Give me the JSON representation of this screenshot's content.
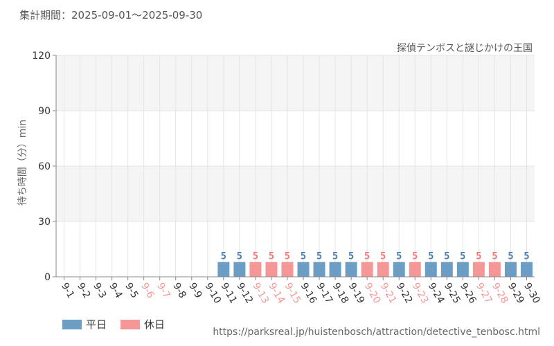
{
  "header": {
    "period": "集計期間：2025-09-01～2025-09-30",
    "attraction": "探偵テンボスと謎じかけの王国"
  },
  "source_url": "https://parksreal.jp/huistenbosch/attraction/detective_tenbosc.html",
  "colors": {
    "weekday": "#6b9dc5",
    "holiday": "#f59797",
    "weekday_text": "#4a7fae",
    "holiday_text": "#f07a7a",
    "axis_text": "#333333",
    "band": "#f5f5f5",
    "grid": "#e4e4e4"
  },
  "chart_data": {
    "type": "bar",
    "ylabel": "待ち時間（分）min",
    "ylim": [
      0,
      120
    ],
    "yticks": [
      0,
      30,
      60,
      90,
      120
    ],
    "grid": true,
    "legend_position": "bottom-left",
    "categories": [
      "9-1",
      "9-2",
      "9-3",
      "9-4",
      "9-5",
      "9-6",
      "9-7",
      "9-8",
      "9-9",
      "9-10",
      "9-11",
      "9-12",
      "9-13",
      "9-14",
      "9-15",
      "9-16",
      "9-17",
      "9-18",
      "9-19",
      "9-20",
      "9-21",
      "9-22",
      "9-23",
      "9-24",
      "9-25",
      "9-26",
      "9-27",
      "9-28",
      "9-29",
      "9-30"
    ],
    "day_type": [
      "weekday",
      "weekday",
      "weekday",
      "weekday",
      "weekday",
      "holiday",
      "holiday",
      "weekday",
      "weekday",
      "weekday",
      "weekday",
      "weekday",
      "holiday",
      "holiday",
      "holiday",
      "weekday",
      "weekday",
      "weekday",
      "weekday",
      "holiday",
      "holiday",
      "weekday",
      "holiday",
      "weekday",
      "weekday",
      "weekday",
      "holiday",
      "holiday",
      "weekday",
      "weekday"
    ],
    "values": [
      null,
      null,
      null,
      null,
      null,
      null,
      null,
      null,
      null,
      null,
      5,
      5,
      5,
      5,
      5,
      5,
      5,
      5,
      5,
      5,
      5,
      5,
      5,
      5,
      5,
      5,
      5,
      5,
      5,
      5
    ],
    "series": [
      {
        "name": "平日",
        "key": "weekday"
      },
      {
        "name": "休日",
        "key": "holiday"
      }
    ]
  }
}
